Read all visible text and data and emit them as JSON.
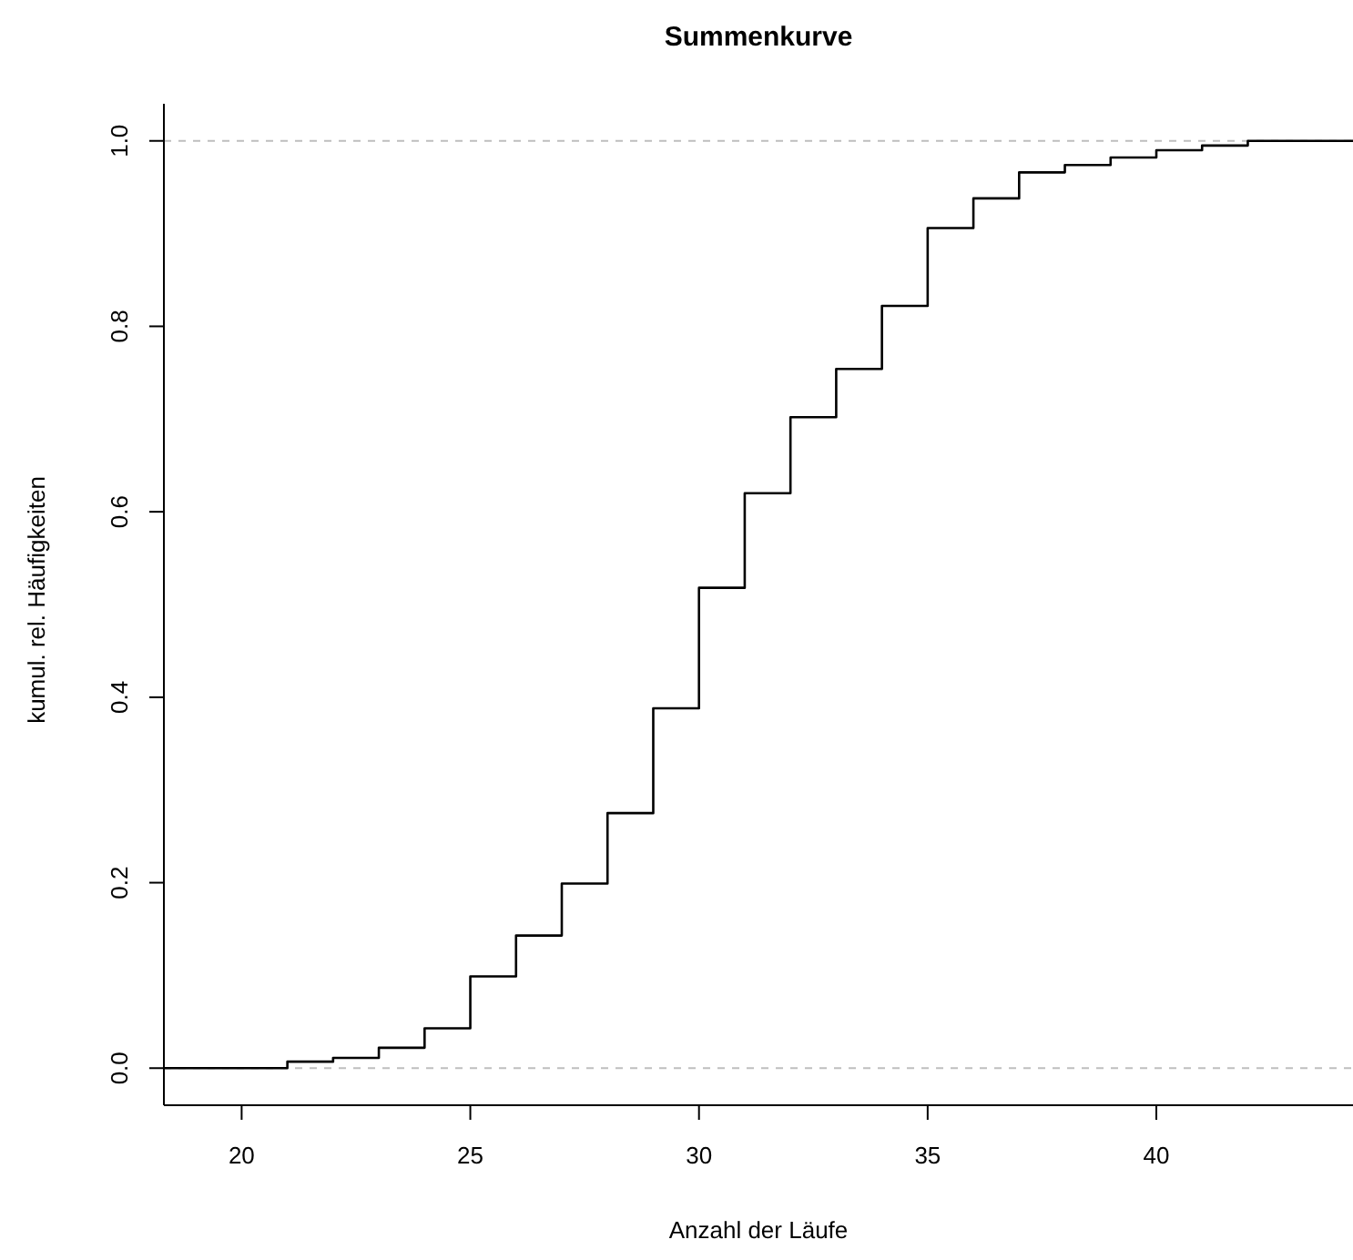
{
  "chart_data": {
    "type": "step",
    "title": "Summenkurve",
    "xlabel": "Anzahl der Läufe",
    "ylabel": "kumul. rel. Häufigkeiten",
    "x": [
      18.3,
      21,
      22,
      23,
      24,
      25,
      26,
      27,
      28,
      29,
      30,
      31,
      32,
      33,
      34,
      35,
      36,
      37,
      38,
      39,
      40,
      41,
      42,
      44.3
    ],
    "series": [
      {
        "color": "#000000",
        "values": [
          0,
          0.007,
          0.011,
          0.022,
          0.043,
          0.099,
          0.143,
          0.199,
          0.275,
          0.388,
          0.518,
          0.62,
          0.702,
          0.754,
          0.822,
          0.906,
          0.938,
          0.966,
          0.974,
          0.982,
          0.99,
          0.995,
          1,
          1
        ]
      }
    ],
    "xlim": [
      18.3,
      44.3
    ],
    "ylim": [
      -0.04,
      1.04
    ],
    "xticks": [
      20,
      25,
      30,
      35,
      40
    ],
    "yticks": [
      {
        "value": 0,
        "label": "0.0"
      },
      0.2,
      0.4,
      0.6,
      0.8,
      {
        "value": 1,
        "label": "1.0"
      }
    ],
    "ref_lines": [
      {
        "axis": "y",
        "value": 0,
        "color": "#bebebe",
        "line_style": "dashed"
      },
      {
        "axis": "y",
        "value": 1,
        "color": "#bebebe",
        "line_style": "dashed"
      }
    ],
    "marker": "none",
    "grid": false,
    "legend": false
  }
}
